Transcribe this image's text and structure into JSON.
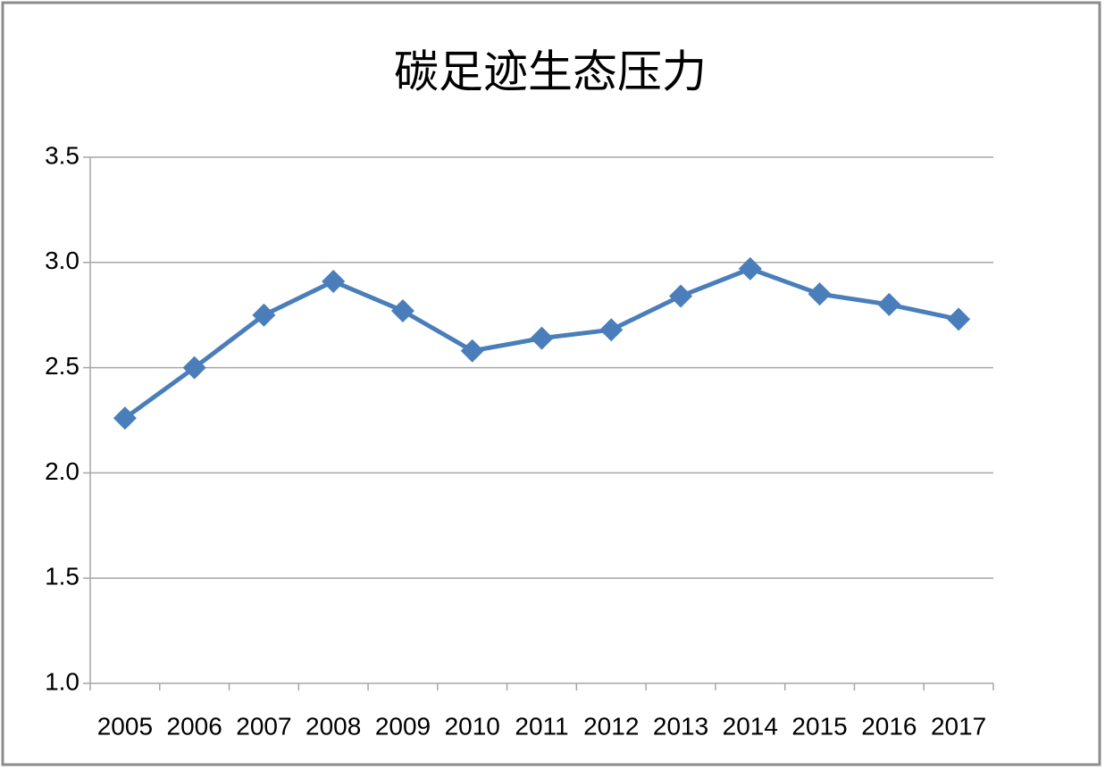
{
  "chart_data": {
    "type": "line",
    "title": "碳足迹生态压力",
    "categories": [
      "2005",
      "2006",
      "2007",
      "2008",
      "2009",
      "2010",
      "2011",
      "2012",
      "2013",
      "2014",
      "2015",
      "2016",
      "2017"
    ],
    "values": [
      2.26,
      2.5,
      2.75,
      2.91,
      2.77,
      2.58,
      2.64,
      2.68,
      2.84,
      2.97,
      2.85,
      2.8,
      2.73
    ],
    "color": "#4a7ebb",
    "ylim": [
      1,
      3.5
    ],
    "yticks": [
      {
        "value": 1,
        "label": "1.0"
      },
      1.5,
      {
        "value": 2,
        "label": "2.0"
      },
      2.5,
      {
        "value": 3,
        "label": "3.0"
      },
      3.5
    ],
    "grid": true
  }
}
